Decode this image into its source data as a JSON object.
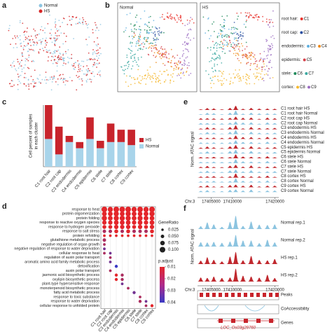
{
  "figure": {
    "a": {
      "label": "a",
      "legend": [
        {
          "name": "Normal",
          "color": "#8cc4e0"
        },
        {
          "name": "HS",
          "color": "#d62728"
        }
      ]
    },
    "b": {
      "label": "b",
      "titles": [
        "Normal",
        "HS"
      ],
      "legend": [
        {
          "tissue": "root hair:",
          "clusters": [
            {
              "name": "C1",
              "color": "#e8312a"
            }
          ]
        },
        {
          "tissue": "root cap:",
          "clusters": [
            {
              "name": "C2",
              "color": "#2b4fa0"
            }
          ]
        },
        {
          "tissue": "endodermis:",
          "clusters": [
            {
              "name": "C3",
              "color": "#5fb0e0"
            },
            {
              "name": "C4",
              "color": "#f08c1e"
            }
          ]
        },
        {
          "tissue": "epidermis:",
          "clusters": [
            {
              "name": "C5",
              "color": "#d6404a"
            }
          ]
        },
        {
          "tissue": "stele:",
          "clusters": [
            {
              "name": "C6",
              "color": "#1f8a5a"
            },
            {
              "name": "C7",
              "color": "#3aa8a0"
            }
          ]
        },
        {
          "tissue": "cortex:",
          "clusters": [
            {
              "name": "C8",
              "color": "#f5b82e"
            },
            {
              "name": "C9",
              "color": "#9b6bc2"
            }
          ]
        }
      ]
    },
    "e": {
      "label": "e",
      "ylabel": "Norm. ATAC signal",
      "chrom": "Chr.3",
      "xlim": [
        17401800,
        17420900
      ],
      "xticks": [
        17405000,
        17410000,
        17420000
      ],
      "tracks": [
        {
          "label": "C1 root hair HS",
          "color": "#c0282e"
        },
        {
          "label": "C1 root hair Normal",
          "color": "#8cc4e0"
        },
        {
          "label": "C2 root cap HS",
          "color": "#c0282e"
        },
        {
          "label": "C2 root cap Normal",
          "color": "#8cc4e0"
        },
        {
          "label": "C3 endodermis HS",
          "color": "#c0282e"
        },
        {
          "label": "C3 endodermis Normal",
          "color": "#8cc4e0"
        },
        {
          "label": "C4 endodermis HS",
          "color": "#c0282e"
        },
        {
          "label": "C4 endodermis Normal",
          "color": "#8cc4e0"
        },
        {
          "label": "C5 epidermis HS",
          "color": "#c0282e"
        },
        {
          "label": "C5 epidermis Normal",
          "color": "#8cc4e0"
        },
        {
          "label": "C6 stele HS",
          "color": "#c0282e"
        },
        {
          "label": "C6 stele Normal",
          "color": "#8cc4e0"
        },
        {
          "label": "C7 stele HS",
          "color": "#c0282e"
        },
        {
          "label": "C7 stele Normal",
          "color": "#8cc4e0"
        },
        {
          "label": "C8 cortex HS",
          "color": "#c0282e"
        },
        {
          "label": "C8 cortex Normal",
          "color": "#8cc4e0"
        },
        {
          "label": "C9 cortex HS",
          "color": "#c0282e"
        },
        {
          "label": "C9 cortex Normal",
          "color": "#8cc4e0"
        }
      ]
    },
    "f": {
      "label": "f",
      "ylabel": "Norm. ATAC signal",
      "chrom": "Chr.3",
      "xlim": [
        17401800,
        17420900
      ],
      "xticks": [
        17405000,
        17410000,
        17420000
      ],
      "tracks": [
        {
          "label": "Normal rep.1",
          "color": "#8cc4e0"
        },
        {
          "label": "Normal rep.2",
          "color": "#8cc4e0"
        },
        {
          "label": "HS rep.1",
          "color": "#c0282e"
        },
        {
          "label": "HS rep.2",
          "color": "#c0282e"
        }
      ],
      "annotations": [
        "Peaks",
        "CoAccessibility",
        "Genes"
      ],
      "gene": "LOC_Os03g29760"
    }
  },
  "chart_data": [
    {
      "type": "bar",
      "panel": "c",
      "stacked": true,
      "ylabel": [
        "Cell percent of samples",
        "in each cluster"
      ],
      "categories": [
        "C1 root hair",
        "C2 root cap",
        "C3 endodermis",
        "C4 endodermis",
        "C5 epidermis",
        "C6 stele",
        "C7 stele",
        "C8 cortex",
        "C9 cortex"
      ],
      "series": [
        {
          "name": "HS",
          "color": "#c8242c",
          "values": [
            55,
            45,
            10,
            10,
            35,
            12,
            30,
            20,
            25
          ]
        },
        {
          "name": "Normal",
          "color": "#a8d4ea",
          "values": [
            45,
            20,
            40,
            30,
            45,
            30,
            40,
            40,
            35
          ]
        }
      ],
      "ylim": [
        0,
        100
      ],
      "legend": "right"
    },
    {
      "type": "dot",
      "panel": "d",
      "categories": [
        "C1 root hair",
        "C2 root cap",
        "C3 endodermis",
        "C4 endodermis",
        "C5 epidermis",
        "C6 stele",
        "C7 stele",
        "C8 cortex",
        "C9 cortex"
      ],
      "series": [
        {
          "name": "response to heat",
          "values": [
            0.1,
            0.09,
            0.1,
            0.1,
            0.1,
            0.09,
            0.1,
            0.09,
            0.1
          ],
          "p_adjust": [
            0.01,
            0.01,
            0.01,
            0.01,
            0.01,
            0.01,
            0.01,
            0.01,
            0.01
          ]
        },
        {
          "name": "protein oligomerization",
          "values": [
            0.08,
            0.08,
            0.09,
            0.08,
            0.09,
            0.08,
            0.08,
            0.08,
            0.09
          ],
          "p_adjust": [
            0.01,
            0.01,
            0.01,
            0.01,
            0.01,
            0.01,
            0.01,
            0.01,
            0.01
          ]
        },
        {
          "name": "protein folding",
          "values": [
            0.09,
            0.08,
            0.09,
            0.09,
            0.09,
            0.08,
            0.09,
            0.08,
            0.08
          ],
          "p_adjust": [
            0.01,
            0.01,
            0.01,
            0.01,
            0.01,
            0.01,
            0.01,
            0.01,
            0.01
          ]
        },
        {
          "name": "response to reactive oxygen species",
          "values": [
            0.07,
            0.07,
            0.08,
            0.08,
            0.08,
            0.07,
            0.08,
            0.07,
            0.08
          ],
          "p_adjust": [
            0.01,
            0.01,
            0.01,
            0.01,
            0.01,
            0.01,
            0.01,
            0.01,
            0.01
          ]
        },
        {
          "name": "response to hydrogen peroxide",
          "values": [
            0.06,
            0.06,
            0.07,
            0.07,
            0.07,
            0.06,
            0.07,
            0.06,
            0.07
          ],
          "p_adjust": [
            0.01,
            0.01,
            0.01,
            0.01,
            0.01,
            0.01,
            0.01,
            0.01,
            0.01
          ]
        },
        {
          "name": "response to salt stress",
          "values": [
            0.05,
            0.05,
            0.06,
            0.05,
            0.06,
            0.05,
            0.05,
            0.05,
            0.06
          ],
          "p_adjust": [
            0.02,
            0.02,
            0.01,
            0.02,
            0.01,
            0.02,
            0.02,
            0.02,
            0.01
          ]
        },
        {
          "name": "protein refolding",
          "values": [
            0.03,
            0.03,
            0.03,
            0.03,
            0.03,
            0.03,
            0.03,
            0.03,
            0.03
          ],
          "p_adjust": [
            0.01,
            0.01,
            0.01,
            0.01,
            0.01,
            0.01,
            0.01,
            0.01,
            0.01
          ]
        },
        {
          "name": "glutathione metabolic process",
          "values": [
            0.05,
            null,
            null,
            null,
            null,
            null,
            null,
            null,
            null
          ],
          "p_adjust": [
            0.02,
            null,
            null,
            null,
            null,
            null,
            null,
            null,
            null
          ]
        },
        {
          "name": "negative regulation of organ growth",
          "values": [
            0.03,
            null,
            null,
            null,
            null,
            null,
            null,
            null,
            null
          ],
          "p_adjust": [
            0.02,
            null,
            null,
            null,
            null,
            null,
            null,
            null,
            null
          ]
        },
        {
          "name": "negative regulation of response to water deprivation",
          "values": [
            0.03,
            null,
            null,
            null,
            null,
            null,
            null,
            null,
            null
          ],
          "p_adjust": [
            0.03,
            null,
            null,
            null,
            null,
            null,
            null,
            null,
            null
          ]
        },
        {
          "name": "cellular response to heat",
          "values": [
            0.03,
            0.03,
            null,
            null,
            null,
            null,
            null,
            null,
            null
          ],
          "p_adjust": [
            0.02,
            0.03,
            null,
            null,
            null,
            null,
            null,
            null,
            null
          ]
        },
        {
          "name": "regulation of auxin polar transport",
          "values": [
            null,
            0.03,
            null,
            null,
            null,
            null,
            null,
            null,
            null
          ],
          "p_adjust": [
            null,
            0.02,
            null,
            null,
            null,
            null,
            null,
            null,
            null
          ]
        },
        {
          "name": "aromatic amino acid family metabolic process",
          "values": [
            null,
            0.03,
            null,
            null,
            null,
            null,
            null,
            null,
            null
          ],
          "p_adjust": [
            null,
            0.03,
            null,
            null,
            null,
            null,
            null,
            null,
            null
          ]
        },
        {
          "name": "detoxification",
          "values": [
            null,
            null,
            0.04,
            null,
            null,
            null,
            null,
            null,
            null
          ],
          "p_adjust": [
            null,
            null,
            0.04,
            null,
            null,
            null,
            null,
            null,
            null
          ]
        },
        {
          "name": "auxin polar transport",
          "values": [
            null,
            0.03,
            null,
            null,
            null,
            null,
            null,
            null,
            null
          ],
          "p_adjust": [
            null,
            0.02,
            null,
            null,
            null,
            null,
            null,
            null,
            null
          ]
        },
        {
          "name": "jasmonic acid biosynthetic process",
          "values": [
            null,
            null,
            0.04,
            0.04,
            null,
            null,
            null,
            null,
            null
          ],
          "p_adjust": [
            null,
            null,
            0.01,
            0.02,
            null,
            null,
            null,
            null,
            null
          ]
        },
        {
          "name": "oxylipin biosynthetic process",
          "values": [
            null,
            null,
            0.04,
            0.04,
            null,
            null,
            null,
            null,
            null
          ],
          "p_adjust": [
            null,
            null,
            0.01,
            0.02,
            null,
            null,
            null,
            null,
            null
          ]
        },
        {
          "name": "plant-type hypersensitive response",
          "values": [
            null,
            null,
            null,
            0.03,
            null,
            null,
            null,
            null,
            null
          ],
          "p_adjust": [
            null,
            null,
            null,
            0.03,
            null,
            null,
            null,
            null,
            null
          ]
        },
        {
          "name": "monoterpenoid biosynthetic process",
          "values": [
            null,
            null,
            null,
            null,
            0.03,
            null,
            null,
            null,
            null
          ],
          "p_adjust": [
            null,
            null,
            null,
            null,
            0.02,
            null,
            null,
            null,
            null
          ]
        },
        {
          "name": "fatty acid metabolic process",
          "values": [
            null,
            null,
            null,
            null,
            null,
            0.04,
            null,
            null,
            null
          ],
          "p_adjust": [
            null,
            null,
            null,
            null,
            null,
            0.03,
            null,
            null,
            null
          ]
        },
        {
          "name": "response to toxic substance",
          "values": [
            null,
            null,
            null,
            null,
            null,
            null,
            0.03,
            null,
            null
          ],
          "p_adjust": [
            null,
            null,
            null,
            null,
            null,
            null,
            0.02,
            null,
            null
          ]
        },
        {
          "name": "response to water deprivation",
          "values": [
            null,
            null,
            null,
            null,
            null,
            null,
            0.04,
            0.03,
            null
          ],
          "p_adjust": [
            null,
            null,
            null,
            null,
            null,
            null,
            0.02,
            0.03,
            null
          ]
        },
        {
          "name": "cellular response to unfolded protein",
          "values": [
            null,
            null,
            null,
            null,
            null,
            null,
            null,
            0.03,
            0.04
          ],
          "p_adjust": [
            null,
            null,
            null,
            null,
            null,
            null,
            null,
            0.02,
            0.01
          ]
        }
      ],
      "size_title": "GeneRatio",
      "size_ticks": [
        0.025,
        {
          "value": 0.05,
          "label": "0.050"
        },
        0.075,
        {
          "value": 0.1,
          "label": "0.100"
        }
      ],
      "color_title": "p.adjust",
      "clim": [
        0.01,
        0.04
      ],
      "cticks": [
        0.01,
        0.02,
        0.03,
        0.04
      ],
      "colors": [
        "#e3262b",
        "#3a3ac4"
      ]
    }
  ]
}
